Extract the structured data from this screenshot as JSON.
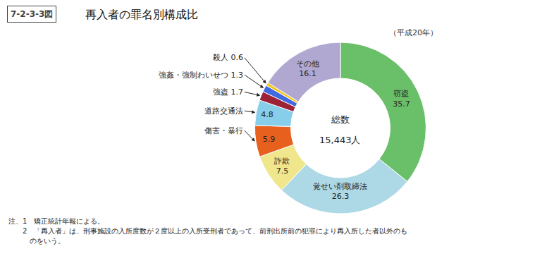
{
  "chart_data": {
    "type": "donut",
    "title": "再入者の罪名別構成比",
    "subtitle": "（平成20年）",
    "categories": [
      "窃盗",
      "覚せい剤取締法",
      "詐欺",
      "傷害・暴行",
      "道路交通法",
      "強盗",
      "強姦・強制わいせつ",
      "殺人",
      "その他"
    ],
    "values": [
      35.7,
      26.3,
      7.5,
      5.9,
      4.8,
      1.7,
      1.3,
      0.6,
      16.1
    ],
    "colors": [
      "#6abf69",
      "#add8e6",
      "#f0e68c",
      "#e8601e",
      "#87ceeb",
      "#9b2335",
      "#4169e1",
      "#f5c518",
      "#b0a8d0"
    ],
    "data_labels": true,
    "value_labels": [
      "窃盗\n35.7",
      "覚せい剤取締法\n26.3",
      "詐欺\n7.5",
      "5.9",
      "4.8",
      null,
      null,
      null,
      "その他\n16.1"
    ],
    "annotations": {
      "tag": "7-2-3-3図",
      "center": [
        "総数",
        "15,443人"
      ],
      "arrows": [
        {
          "category": "殺人",
          "text": "殺人 0.6"
        },
        {
          "category": "強姦・強制わいせつ",
          "text": "強姦・強制わいせつ 1.3"
        },
        {
          "category": "強盗",
          "text": "強盗 1.7"
        },
        {
          "category": "道路交通法",
          "text": "道路交通法"
        },
        {
          "category": "傷害・暴行",
          "text": "傷害・暴行"
        }
      ],
      "notes": [
        "注、1　矯正統計年報による。",
        "　　2　「再入者」は、刑事施設の入所度数が２度以上の入所受刑者であって、前刑出所前の犯罪により再入所した者以外のも",
        "　　　のをいう。"
      ]
    }
  }
}
